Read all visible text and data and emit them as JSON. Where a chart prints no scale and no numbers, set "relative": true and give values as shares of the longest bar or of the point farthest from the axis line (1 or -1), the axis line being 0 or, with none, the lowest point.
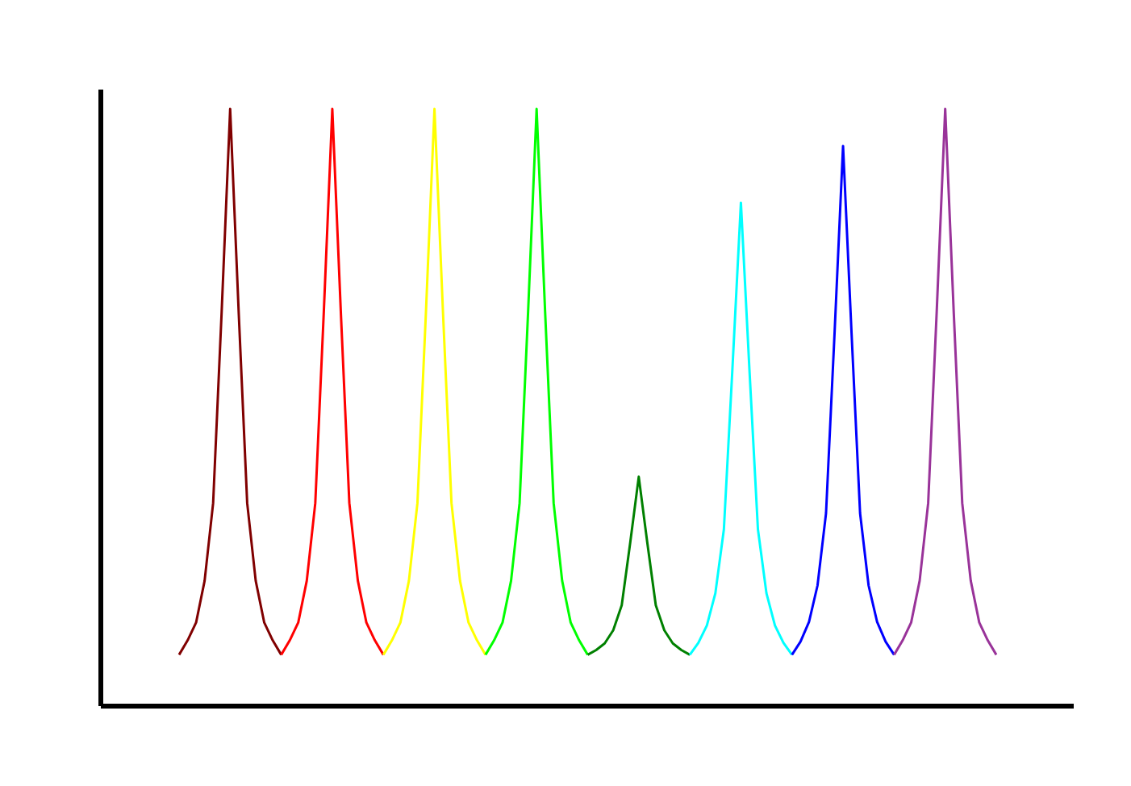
{
  "chart_data": {
    "type": "line",
    "relative": true,
    "categories": [
      null,
      null,
      null,
      null,
      null,
      null,
      null,
      null,
      null,
      null,
      null,
      null,
      null,
      null,
      null,
      null,
      null,
      null,
      null,
      null,
      null,
      null,
      null,
      null,
      null,
      null,
      null,
      null,
      null,
      null,
      null,
      null,
      null,
      null,
      null,
      null,
      null,
      null,
      null,
      null,
      null,
      null,
      null,
      null,
      null,
      null,
      null,
      null,
      null,
      null,
      null,
      null,
      null,
      null,
      null,
      null,
      null,
      null,
      null,
      null,
      null,
      null,
      null,
      null,
      null,
      null,
      null,
      null,
      null,
      null,
      null,
      null,
      null,
      null,
      null,
      null,
      null,
      null,
      null,
      null,
      null,
      null,
      null,
      null,
      null,
      null,
      null,
      null,
      null,
      null,
      null,
      null,
      null,
      null,
      null,
      null,
      null
    ],
    "series": [
      {
        "color": "#800000",
        "values": [
          0.086,
          0.11,
          0.14,
          0.21,
          0.34,
          0.66,
          1,
          0.66,
          0.34,
          0.21,
          0.14,
          0.11,
          0.086,
          null,
          null,
          null,
          null,
          null,
          null,
          null,
          null,
          null,
          null,
          null,
          null,
          null,
          null,
          null,
          null,
          null,
          null,
          null,
          null,
          null,
          null,
          null,
          null,
          null,
          null,
          null,
          null,
          null,
          null,
          null,
          null,
          null,
          null,
          null,
          null,
          null,
          null,
          null,
          null,
          null,
          null,
          null,
          null,
          null,
          null,
          null,
          null,
          null,
          null,
          null,
          null,
          null,
          null,
          null,
          null,
          null,
          null,
          null,
          null,
          null,
          null,
          null,
          null,
          null,
          null,
          null,
          null,
          null,
          null,
          null,
          null,
          null,
          null,
          null,
          null,
          null,
          null,
          null,
          null,
          null,
          null,
          null,
          null
        ]
      },
      {
        "color": "#ff0000",
        "values": [
          null,
          null,
          null,
          null,
          null,
          null,
          null,
          null,
          null,
          null,
          null,
          null,
          0.086,
          0.11,
          0.14,
          0.21,
          0.34,
          0.66,
          1,
          0.66,
          0.34,
          0.21,
          0.14,
          0.11,
          0.086,
          null,
          null,
          null,
          null,
          null,
          null,
          null,
          null,
          null,
          null,
          null,
          null,
          null,
          null,
          null,
          null,
          null,
          null,
          null,
          null,
          null,
          null,
          null,
          null,
          null,
          null,
          null,
          null,
          null,
          null,
          null,
          null,
          null,
          null,
          null,
          null,
          null,
          null,
          null,
          null,
          null,
          null,
          null,
          null,
          null,
          null,
          null,
          null,
          null,
          null,
          null,
          null,
          null,
          null,
          null,
          null,
          null,
          null,
          null,
          null,
          null,
          null,
          null,
          null,
          null,
          null,
          null,
          null,
          null,
          null,
          null,
          null
        ]
      },
      {
        "color": "#ffff00",
        "values": [
          null,
          null,
          null,
          null,
          null,
          null,
          null,
          null,
          null,
          null,
          null,
          null,
          null,
          null,
          null,
          null,
          null,
          null,
          null,
          null,
          null,
          null,
          null,
          null,
          0.086,
          0.11,
          0.14,
          0.21,
          0.34,
          0.66,
          1,
          0.66,
          0.34,
          0.21,
          0.14,
          0.11,
          0.086,
          null,
          null,
          null,
          null,
          null,
          null,
          null,
          null,
          null,
          null,
          null,
          null,
          null,
          null,
          null,
          null,
          null,
          null,
          null,
          null,
          null,
          null,
          null,
          null,
          null,
          null,
          null,
          null,
          null,
          null,
          null,
          null,
          null,
          null,
          null,
          null,
          null,
          null,
          null,
          null,
          null,
          null,
          null,
          null,
          null,
          null,
          null,
          null,
          null,
          null,
          null,
          null,
          null,
          null,
          null,
          null,
          null,
          null,
          null,
          null
        ]
      },
      {
        "color": "#00ff00",
        "values": [
          null,
          null,
          null,
          null,
          null,
          null,
          null,
          null,
          null,
          null,
          null,
          null,
          null,
          null,
          null,
          null,
          null,
          null,
          null,
          null,
          null,
          null,
          null,
          null,
          null,
          null,
          null,
          null,
          null,
          null,
          null,
          null,
          null,
          null,
          null,
          null,
          0.086,
          0.11,
          0.14,
          0.21,
          0.34,
          0.66,
          1,
          0.66,
          0.34,
          0.21,
          0.14,
          0.11,
          0.086,
          null,
          null,
          null,
          null,
          null,
          null,
          null,
          null,
          null,
          null,
          null,
          null,
          null,
          null,
          null,
          null,
          null,
          null,
          null,
          null,
          null,
          null,
          null,
          null,
          null,
          null,
          null,
          null,
          null,
          null,
          null,
          null,
          null,
          null,
          null,
          null,
          null,
          null,
          null,
          null,
          null,
          null,
          null,
          null,
          null,
          null,
          null,
          null
        ]
      },
      {
        "color": "#008000",
        "values": [
          null,
          null,
          null,
          null,
          null,
          null,
          null,
          null,
          null,
          null,
          null,
          null,
          null,
          null,
          null,
          null,
          null,
          null,
          null,
          null,
          null,
          null,
          null,
          null,
          null,
          null,
          null,
          null,
          null,
          null,
          null,
          null,
          null,
          null,
          null,
          null,
          null,
          null,
          null,
          null,
          null,
          null,
          null,
          null,
          null,
          null,
          null,
          null,
          0.086,
          0.094,
          0.105,
          0.127,
          0.169,
          0.274,
          0.384,
          0.274,
          0.169,
          0.127,
          0.105,
          0.094,
          0.086,
          null,
          null,
          null,
          null,
          null,
          null,
          null,
          null,
          null,
          null,
          null,
          null,
          null,
          null,
          null,
          null,
          null,
          null,
          null,
          null,
          null,
          null,
          null,
          null,
          null,
          null,
          null,
          null,
          null,
          null,
          null,
          null,
          null,
          null,
          null,
          null
        ]
      },
      {
        "color": "#00ffff",
        "values": [
          null,
          null,
          null,
          null,
          null,
          null,
          null,
          null,
          null,
          null,
          null,
          null,
          null,
          null,
          null,
          null,
          null,
          null,
          null,
          null,
          null,
          null,
          null,
          null,
          null,
          null,
          null,
          null,
          null,
          null,
          null,
          null,
          null,
          null,
          null,
          null,
          null,
          null,
          null,
          null,
          null,
          null,
          null,
          null,
          null,
          null,
          null,
          null,
          null,
          null,
          null,
          null,
          null,
          null,
          null,
          null,
          null,
          null,
          null,
          null,
          0.086,
          0.106,
          0.135,
          0.189,
          0.296,
          0.564,
          0.843,
          0.564,
          0.296,
          0.189,
          0.135,
          0.106,
          0.086,
          null,
          null,
          null,
          null,
          null,
          null,
          null,
          null,
          null,
          null,
          null,
          null,
          null,
          null,
          null,
          null,
          null,
          null,
          null,
          null,
          null,
          null,
          null,
          null
        ]
      },
      {
        "color": "#0000ff",
        "values": [
          null,
          null,
          null,
          null,
          null,
          null,
          null,
          null,
          null,
          null,
          null,
          null,
          null,
          null,
          null,
          null,
          null,
          null,
          null,
          null,
          null,
          null,
          null,
          null,
          null,
          null,
          null,
          null,
          null,
          null,
          null,
          null,
          null,
          null,
          null,
          null,
          null,
          null,
          null,
          null,
          null,
          null,
          null,
          null,
          null,
          null,
          null,
          null,
          null,
          null,
          null,
          null,
          null,
          null,
          null,
          null,
          null,
          null,
          null,
          null,
          null,
          null,
          null,
          null,
          null,
          null,
          null,
          null,
          null,
          null,
          null,
          null,
          0.086,
          0.108,
          0.141,
          0.202,
          0.323,
          0.624,
          0.938,
          0.624,
          0.323,
          0.202,
          0.141,
          0.108,
          0.086,
          null,
          null,
          null,
          null,
          null,
          null,
          null,
          null,
          null,
          null,
          null,
          null
        ]
      },
      {
        "color": "#993399",
        "values": [
          null,
          null,
          null,
          null,
          null,
          null,
          null,
          null,
          null,
          null,
          null,
          null,
          null,
          null,
          null,
          null,
          null,
          null,
          null,
          null,
          null,
          null,
          null,
          null,
          null,
          null,
          null,
          null,
          null,
          null,
          null,
          null,
          null,
          null,
          null,
          null,
          null,
          null,
          null,
          null,
          null,
          null,
          null,
          null,
          null,
          null,
          null,
          null,
          null,
          null,
          null,
          null,
          null,
          null,
          null,
          null,
          null,
          null,
          null,
          null,
          null,
          null,
          null,
          null,
          null,
          null,
          null,
          null,
          null,
          null,
          null,
          null,
          null,
          null,
          null,
          null,
          null,
          null,
          null,
          null,
          null,
          null,
          null,
          null,
          0.086,
          0.11,
          0.14,
          0.21,
          0.34,
          0.66,
          1,
          0.66,
          0.34,
          0.21,
          0.14,
          0.11,
          0.086
        ]
      }
    ]
  }
}
